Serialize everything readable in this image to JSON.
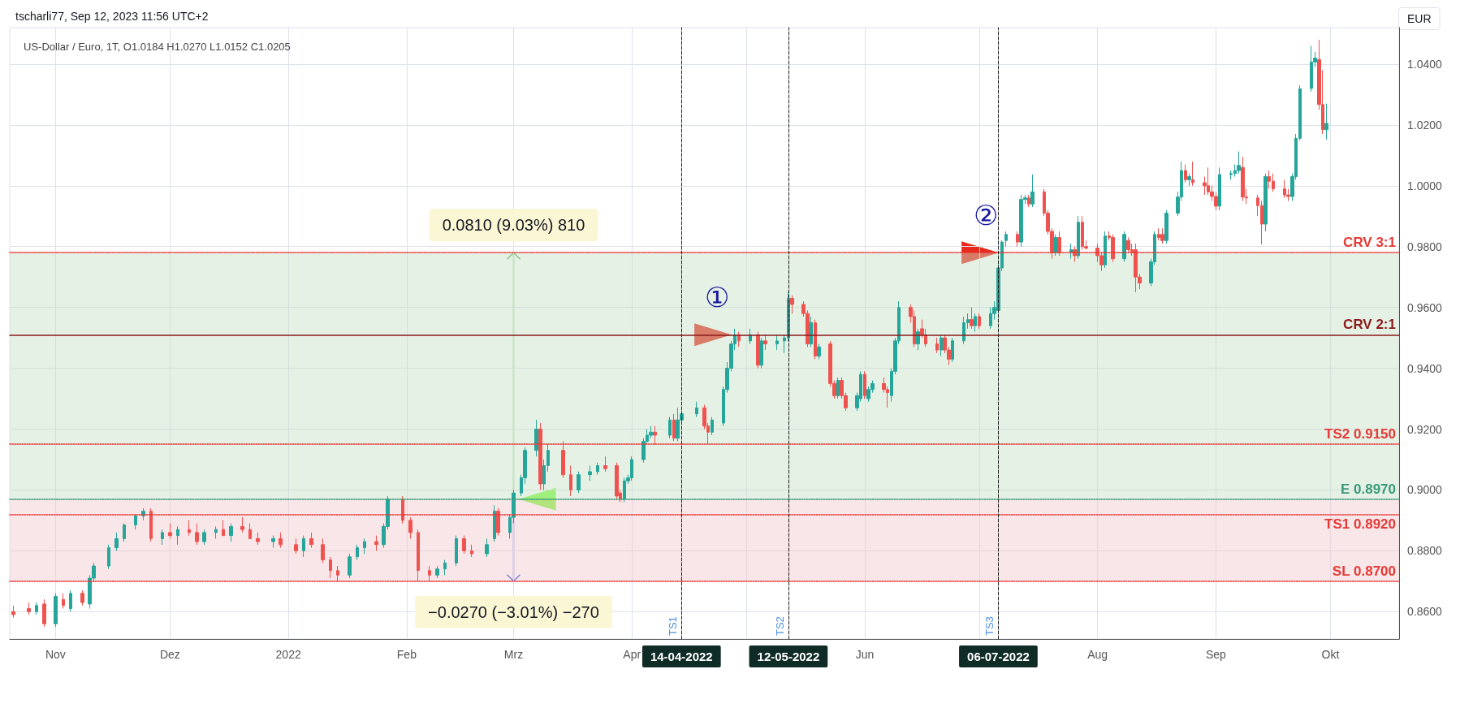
{
  "chart_data": {
    "type": "candlestick",
    "subtitle": "tscharli77, Sep 12, 2023 11:56 UTC+2",
    "title": "US-Dollar / Euro, 1T, O1.0184 H1.0270 L1.0152 C1.0205",
    "ylabel": "EUR",
    "x": [
      "2021-10-21",
      "2021-10-25",
      "2021-10-27",
      "2021-10-29",
      "2021-11-01",
      "2021-11-03",
      "2021-11-05",
      "2021-11-08",
      "2021-11-10",
      "2021-11-11",
      "2021-11-15",
      "2021-11-17",
      "2021-11-19",
      "2021-11-22",
      "2021-11-24",
      "2021-11-26",
      "2021-11-29",
      "2021-12-01",
      "2021-12-03",
      "2021-12-06",
      "2021-12-08",
      "2021-12-10",
      "2021-12-13",
      "2021-12-15",
      "2021-12-17",
      "2021-12-20",
      "2021-12-22",
      "2021-12-24",
      "2021-12-28",
      "2021-12-30",
      "2022-01-03",
      "2022-01-05",
      "2022-01-07",
      "2022-01-10",
      "2022-01-12",
      "2022-01-14",
      "2022-01-17",
      "2022-01-19",
      "2022-01-21",
      "2022-01-24",
      "2022-01-26",
      "2022-01-27",
      "2022-01-31",
      "2022-02-02",
      "2022-02-04",
      "2022-02-07",
      "2022-02-09",
      "2022-02-11",
      "2022-02-14",
      "2022-02-16",
      "2022-02-18",
      "2022-02-22",
      "2022-02-24",
      "2022-02-25",
      "2022-02-28",
      "2022-03-01",
      "2022-03-03",
      "2022-03-04",
      "2022-03-07",
      "2022-03-08",
      "2022-03-09",
      "2022-03-10",
      "2022-03-14",
      "2022-03-16",
      "2022-03-18",
      "2022-03-21",
      "2022-03-23",
      "2022-03-25",
      "2022-03-28",
      "2022-03-29",
      "2022-03-30",
      "2022-03-31",
      "2022-04-01",
      "2022-04-04",
      "2022-04-05",
      "2022-04-06",
      "2022-04-07",
      "2022-04-11",
      "2022-04-12",
      "2022-04-13",
      "2022-04-14",
      "2022-04-18",
      "2022-04-20",
      "2022-04-21",
      "2022-04-22",
      "2022-04-25",
      "2022-04-26",
      "2022-04-27",
      "2022-04-28",
      "2022-04-29",
      "2022-05-02",
      "2022-05-04",
      "2022-05-05",
      "2022-05-06",
      "2022-05-09",
      "2022-05-11",
      "2022-05-12",
      "2022-05-13",
      "2022-05-16",
      "2022-05-17",
      "2022-05-18",
      "2022-05-19",
      "2022-05-20",
      "2022-05-23",
      "2022-05-24",
      "2022-05-25",
      "2022-05-26",
      "2022-05-27",
      "2022-05-30",
      "2022-05-31",
      "2022-06-01",
      "2022-06-02",
      "2022-06-03",
      "2022-06-06",
      "2022-06-07",
      "2022-06-08",
      "2022-06-09",
      "2022-06-10",
      "2022-06-13",
      "2022-06-14",
      "2022-06-15",
      "2022-06-16",
      "2022-06-17",
      "2022-06-20",
      "2022-06-21",
      "2022-06-22",
      "2022-06-23",
      "2022-06-24",
      "2022-06-27",
      "2022-06-28",
      "2022-06-29",
      "2022-06-30",
      "2022-07-01",
      "2022-07-04",
      "2022-07-05",
      "2022-07-06",
      "2022-07-07",
      "2022-07-08",
      "2022-07-11",
      "2022-07-12",
      "2022-07-13",
      "2022-07-14",
      "2022-07-15",
      "2022-07-18",
      "2022-07-19",
      "2022-07-20",
      "2022-07-21",
      "2022-07-22",
      "2022-07-25",
      "2022-07-26",
      "2022-07-27",
      "2022-07-28",
      "2022-07-29",
      "2022-08-01",
      "2022-08-02",
      "2022-08-03",
      "2022-08-04",
      "2022-08-05",
      "2022-08-08",
      "2022-08-09",
      "2022-08-10",
      "2022-08-11",
      "2022-08-12",
      "2022-08-15",
      "2022-08-16",
      "2022-08-17",
      "2022-08-18",
      "2022-08-19",
      "2022-08-22",
      "2022-08-23",
      "2022-08-24",
      "2022-08-25",
      "2022-08-26",
      "2022-08-29",
      "2022-08-30",
      "2022-08-31",
      "2022-09-01",
      "2022-09-02",
      "2022-09-05",
      "2022-09-06",
      "2022-09-07",
      "2022-09-08",
      "2022-09-09",
      "2022-09-12",
      "2022-09-13",
      "2022-09-14",
      "2022-09-15",
      "2022-09-16",
      "2022-09-19",
      "2022-09-20",
      "2022-09-21",
      "2022-09-22",
      "2022-09-23",
      "2022-09-26",
      "2022-09-27",
      "2022-09-28",
      "2022-09-29",
      "2022-09-30"
    ],
    "ohlc": [
      [
        0.86,
        0.862,
        0.858,
        0.859
      ],
      [
        0.861,
        0.863,
        0.859,
        0.86
      ],
      [
        0.86,
        0.863,
        0.859,
        0.862
      ],
      [
        0.8625,
        0.864,
        0.855,
        0.856
      ],
      [
        0.856,
        0.866,
        0.855,
        0.865
      ],
      [
        0.864,
        0.866,
        0.861,
        0.862
      ],
      [
        0.861,
        0.867,
        0.86,
        0.866
      ],
      [
        0.866,
        0.867,
        0.862,
        0.863
      ],
      [
        0.8625,
        0.872,
        0.861,
        0.871
      ],
      [
        0.871,
        0.876,
        0.87,
        0.875
      ],
      [
        0.875,
        0.882,
        0.874,
        0.881
      ],
      [
        0.881,
        0.886,
        0.88,
        0.884
      ],
      [
        0.884,
        0.889,
        0.883,
        0.8885
      ],
      [
        0.8885,
        0.892,
        0.887,
        0.8915
      ],
      [
        0.8915,
        0.894,
        0.89,
        0.893
      ],
      [
        0.893,
        0.894,
        0.883,
        0.884
      ],
      [
        0.884,
        0.887,
        0.882,
        0.886
      ],
      [
        0.886,
        0.889,
        0.884,
        0.885
      ],
      [
        0.885,
        0.888,
        0.882,
        0.887
      ],
      [
        0.887,
        0.89,
        0.885,
        0.886
      ],
      [
        0.886,
        0.889,
        0.882,
        0.883
      ],
      [
        0.883,
        0.887,
        0.882,
        0.886
      ],
      [
        0.886,
        0.888,
        0.884,
        0.887
      ],
      [
        0.887,
        0.89,
        0.885,
        0.885
      ],
      [
        0.885,
        0.889,
        0.883,
        0.888
      ],
      [
        0.888,
        0.891,
        0.886,
        0.887
      ],
      [
        0.887,
        0.889,
        0.884,
        0.884
      ],
      [
        0.884,
        0.886,
        0.882,
        0.883
      ],
      [
        0.883,
        0.885,
        0.881,
        0.884
      ],
      [
        0.884,
        0.886,
        0.881,
        0.882
      ],
      [
        0.882,
        0.884,
        0.879,
        0.88
      ],
      [
        0.88,
        0.885,
        0.878,
        0.884
      ],
      [
        0.884,
        0.886,
        0.881,
        0.882
      ],
      [
        0.882,
        0.884,
        0.876,
        0.877
      ],
      [
        0.877,
        0.878,
        0.871,
        0.8735
      ],
      [
        0.8735,
        0.875,
        0.87,
        0.872
      ],
      [
        0.872,
        0.879,
        0.871,
        0.878
      ],
      [
        0.878,
        0.882,
        0.877,
        0.881
      ],
      [
        0.881,
        0.884,
        0.879,
        0.883
      ],
      [
        0.883,
        0.885,
        0.88,
        0.882
      ],
      [
        0.882,
        0.889,
        0.881,
        0.888
      ],
      [
        0.888,
        0.898,
        0.887,
        0.897
      ],
      [
        0.897,
        0.898,
        0.889,
        0.89
      ],
      [
        0.89,
        0.891,
        0.884,
        0.886
      ],
      [
        0.886,
        0.887,
        0.87,
        0.8735
      ],
      [
        0.8735,
        0.875,
        0.87,
        0.872
      ],
      [
        0.872,
        0.875,
        0.871,
        0.874
      ],
      [
        0.874,
        0.877,
        0.872,
        0.876
      ],
      [
        0.876,
        0.885,
        0.875,
        0.884
      ],
      [
        0.884,
        0.885,
        0.879,
        0.88
      ],
      [
        0.88,
        0.882,
        0.878,
        0.879
      ],
      [
        0.879,
        0.884,
        0.878,
        0.882
      ],
      [
        0.884,
        0.895,
        0.883,
        0.893
      ],
      [
        0.893,
        0.894,
        0.885,
        0.886
      ],
      [
        0.886,
        0.892,
        0.884,
        0.891
      ],
      [
        0.891,
        0.9,
        0.889,
        0.899
      ],
      [
        0.899,
        0.905,
        0.898,
        0.904
      ],
      [
        0.904,
        0.914,
        0.902,
        0.913
      ],
      [
        0.913,
        0.923,
        0.911,
        0.92
      ],
      [
        0.92,
        0.922,
        0.9,
        0.902
      ],
      [
        0.902,
        0.91,
        0.9,
        0.908
      ],
      [
        0.908,
        0.915,
        0.906,
        0.913
      ],
      [
        0.913,
        0.916,
        0.904,
        0.905
      ],
      [
        0.905,
        0.908,
        0.898,
        0.9
      ],
      [
        0.9,
        0.906,
        0.899,
        0.905
      ],
      [
        0.905,
        0.908,
        0.903,
        0.906
      ],
      [
        0.906,
        0.909,
        0.905,
        0.908
      ],
      [
        0.908,
        0.911,
        0.906,
        0.907
      ],
      [
        0.908,
        0.909,
        0.897,
        0.898
      ],
      [
        0.899,
        0.9,
        0.896,
        0.897
      ],
      [
        0.897,
        0.904,
        0.896,
        0.903
      ],
      [
        0.903,
        0.905,
        0.902,
        0.904
      ],
      [
        0.904,
        0.911,
        0.903,
        0.91
      ],
      [
        0.91,
        0.917,
        0.909,
        0.916
      ],
      [
        0.916,
        0.92,
        0.915,
        0.918
      ],
      [
        0.918,
        0.921,
        0.917,
        0.919
      ],
      [
        0.919,
        0.921,
        0.915,
        0.918
      ],
      [
        0.918,
        0.924,
        0.917,
        0.923
      ],
      [
        0.923,
        0.925,
        0.916,
        0.917
      ],
      [
        0.917,
        0.927,
        0.916,
        0.923
      ],
      [
        0.923,
        0.926,
        0.922,
        0.925
      ],
      [
        0.925,
        0.929,
        0.924,
        0.927
      ],
      [
        0.927,
        0.928,
        0.92,
        0.921
      ],
      [
        0.921,
        0.922,
        0.915,
        0.919
      ],
      [
        0.919,
        0.924,
        0.918,
        0.923
      ],
      [
        0.922,
        0.934,
        0.921,
        0.933
      ],
      [
        0.933,
        0.942,
        0.932,
        0.94
      ],
      [
        0.94,
        0.949,
        0.939,
        0.948
      ],
      [
        0.948,
        0.953,
        0.946,
        0.951
      ],
      [
        0.951,
        0.952,
        0.947,
        0.949
      ],
      [
        0.949,
        0.953,
        0.948,
        0.951
      ],
      [
        0.951,
        0.952,
        0.94,
        0.941
      ],
      [
        0.941,
        0.95,
        0.94,
        0.949
      ],
      [
        0.949,
        0.951,
        0.946,
        0.948
      ],
      [
        0.948,
        0.951,
        0.946,
        0.949
      ],
      [
        0.949,
        0.951,
        0.945,
        0.95
      ],
      [
        0.95,
        0.965,
        0.949,
        0.963
      ],
      [
        0.963,
        0.964,
        0.958,
        0.961
      ],
      [
        0.961,
        0.962,
        0.957,
        0.958
      ],
      [
        0.958,
        0.959,
        0.947,
        0.948
      ],
      [
        0.948,
        0.957,
        0.947,
        0.955
      ],
      [
        0.955,
        0.956,
        0.943,
        0.944
      ],
      [
        0.944,
        0.948,
        0.943,
        0.947
      ],
      [
        0.948,
        0.949,
        0.934,
        0.935
      ],
      [
        0.935,
        0.936,
        0.93,
        0.931
      ],
      [
        0.931,
        0.937,
        0.93,
        0.936
      ],
      [
        0.936,
        0.937,
        0.93,
        0.931
      ],
      [
        0.931,
        0.932,
        0.926,
        0.927
      ],
      [
        0.927,
        0.932,
        0.926,
        0.931
      ],
      [
        0.93,
        0.939,
        0.929,
        0.938
      ],
      [
        0.938,
        0.939,
        0.93,
        0.931
      ],
      [
        0.93,
        0.934,
        0.929,
        0.933
      ],
      [
        0.933,
        0.936,
        0.932,
        0.935
      ],
      [
        0.935,
        0.937,
        0.932,
        0.933
      ],
      [
        0.933,
        0.934,
        0.927,
        0.932
      ],
      [
        0.931,
        0.94,
        0.929,
        0.939
      ],
      [
        0.939,
        0.95,
        0.938,
        0.949
      ],
      [
        0.949,
        0.962,
        0.948,
        0.96
      ],
      [
        0.96,
        0.961,
        0.955,
        0.957
      ],
      [
        0.957,
        0.959,
        0.947,
        0.948
      ],
      [
        0.948,
        0.953,
        0.946,
        0.952
      ],
      [
        0.953,
        0.956,
        0.95,
        0.951
      ],
      [
        0.951,
        0.953,
        0.947,
        0.948
      ],
      [
        0.948,
        0.95,
        0.945,
        0.946
      ],
      [
        0.946,
        0.951,
        0.944,
        0.95
      ],
      [
        0.95,
        0.951,
        0.945,
        0.946
      ],
      [
        0.946,
        0.947,
        0.941,
        0.943
      ],
      [
        0.943,
        0.95,
        0.942,
        0.949
      ],
      [
        0.949,
        0.957,
        0.948,
        0.955
      ],
      [
        0.955,
        0.958,
        0.953,
        0.956
      ],
      [
        0.956,
        0.96,
        0.953,
        0.954
      ],
      [
        0.954,
        0.958,
        0.952,
        0.957
      ],
      [
        0.957,
        0.958,
        0.953,
        0.954
      ],
      [
        0.954,
        0.96,
        0.953,
        0.958
      ],
      [
        0.958,
        0.962,
        0.956,
        0.96
      ],
      [
        0.959,
        0.974,
        0.958,
        0.973
      ],
      [
        0.973,
        0.982,
        0.972,
        0.9815
      ],
      [
        0.982,
        0.985,
        0.98,
        0.984
      ],
      [
        0.984,
        0.985,
        0.98,
        0.9815
      ],
      [
        0.9815,
        0.997,
        0.98,
        0.9955
      ],
      [
        0.9955,
        0.997,
        0.994,
        0.996
      ],
      [
        0.996,
        0.997,
        0.993,
        0.994
      ],
      [
        0.994,
        1.0037,
        0.993,
        0.998
      ],
      [
        0.998,
        0.999,
        0.99,
        0.991
      ],
      [
        0.991,
        0.992,
        0.984,
        0.985
      ],
      [
        0.985,
        0.986,
        0.976,
        0.978
      ],
      [
        0.978,
        0.984,
        0.977,
        0.983
      ],
      [
        0.983,
        0.985,
        0.977,
        0.978
      ],
      [
        0.978,
        0.981,
        0.976,
        0.979
      ],
      [
        0.979,
        0.98,
        0.975,
        0.977
      ],
      [
        0.977,
        0.99,
        0.976,
        0.988
      ],
      [
        0.988,
        0.99,
        0.979,
        0.98
      ],
      [
        0.98,
        0.982,
        0.979,
        0.9795
      ],
      [
        0.9795,
        0.981,
        0.975,
        0.977
      ],
      [
        0.977,
        0.978,
        0.972,
        0.974
      ],
      [
        0.974,
        0.985,
        0.973,
        0.9835
      ],
      [
        0.9835,
        0.985,
        0.982,
        0.983
      ],
      [
        0.983,
        0.984,
        0.975,
        0.976
      ],
      [
        0.976,
        0.985,
        0.975,
        0.984
      ],
      [
        0.982,
        0.983,
        0.978,
        0.979
      ],
      [
        0.979,
        0.981,
        0.977,
        0.978
      ],
      [
        0.979,
        0.981,
        0.965,
        0.97
      ],
      [
        0.97,
        0.971,
        0.966,
        0.968
      ],
      [
        0.968,
        0.976,
        0.967,
        0.975
      ],
      [
        0.975,
        0.985,
        0.974,
        0.984
      ],
      [
        0.984,
        0.986,
        0.982,
        0.983
      ],
      [
        0.984,
        0.986,
        0.981,
        0.982
      ],
      [
        0.982,
        0.992,
        0.981,
        0.991
      ],
      [
        0.991,
        0.998,
        0.99,
        0.9963
      ],
      [
        0.9963,
        1.008,
        0.995,
        1.005
      ],
      [
        1.005,
        1.007,
        1.001,
        1.002
      ],
      [
        1.002,
        1.004,
        1.0,
        1.003
      ],
      [
        1.002,
        1.008,
        1.0,
        1.001
      ],
      [
        1.001,
        1.003,
        0.997,
        1.0
      ],
      [
        1.0,
        1.006,
        0.997,
        0.998
      ],
      [
        0.998,
        1.0,
        0.995,
        0.9965
      ],
      [
        0.9965,
        0.998,
        0.992,
        0.9933
      ],
      [
        0.9933,
        1.006,
        0.992,
        1.0037
      ],
      [
        1.0037,
        1.005,
        1.002,
        1.004
      ],
      [
        1.004,
        1.007,
        1.003,
        1.005
      ],
      [
        1.005,
        1.0113,
        1.004,
        1.0067
      ],
      [
        1.006,
        1.0095,
        0.995,
        0.9963
      ],
      [
        0.9963,
        0.999,
        0.994,
        0.996
      ],
      [
        0.996,
        0.997,
        0.99,
        0.9935
      ],
      [
        0.9935,
        0.995,
        0.9807,
        0.9874
      ],
      [
        0.9874,
        1.004,
        0.985,
        1.003
      ],
      [
        1.003,
        1.005,
        0.999,
        1.0015
      ],
      [
        1.0015,
        1.004,
        0.998,
        0.999
      ],
      [
        0.999,
        1.002,
        0.996,
        0.997
      ],
      [
        0.997,
        0.999,
        0.995,
        0.9965
      ],
      [
        0.9965,
        1.004,
        0.995,
        1.003
      ],
      [
        1.003,
        1.017,
        1.002,
        1.0156
      ],
      [
        1.0156,
        1.033,
        1.015,
        1.0319
      ],
      [
        1.032,
        1.046,
        1.031,
        1.0407
      ],
      [
        1.0407,
        1.044,
        1.039,
        1.042
      ],
      [
        1.0415,
        1.048,
        1.025,
        1.0267
      ],
      [
        1.0267,
        1.038,
        1.017,
        1.0185
      ],
      [
        1.0184,
        1.027,
        1.0152,
        1.0205
      ]
    ],
    "xlim": [
      "2021-10-20",
      "2022-10-19"
    ],
    "xticks": [
      {
        "value": "2021-11-01",
        "label": "Nov"
      },
      {
        "value": "2021-12-01",
        "label": "Dez"
      },
      {
        "value": "2022-01-01",
        "label": "2022"
      },
      {
        "value": "2022-02-01",
        "label": "Feb"
      },
      {
        "value": "2022-03-01",
        "label": "Mrz"
      },
      {
        "value": "2022-04-01",
        "label": "Apr"
      },
      {
        "value": "2022-05-01",
        "label": null
      },
      {
        "value": "2022-06-01",
        "label": "Jun"
      },
      {
        "value": "2022-07-01",
        "label": null
      },
      {
        "value": "2022-08-01",
        "label": "Aug"
      },
      {
        "value": "2022-09-01",
        "label": "Sep"
      },
      {
        "value": "2022-10-01",
        "label": "Okt"
      }
    ],
    "ylim": [
      0.851,
      1.052
    ],
    "yticks": [
      {
        "value": 0.86,
        "label": "0.8600"
      },
      {
        "value": 0.88,
        "label": "0.8800"
      },
      {
        "value": 0.9,
        "label": "0.9000"
      },
      {
        "value": 0.92,
        "label": "0.9200"
      },
      {
        "value": 0.94,
        "label": "0.9400"
      },
      {
        "value": 0.96,
        "label": "0.9600"
      },
      {
        "value": 0.98,
        "label": "0.9800"
      },
      {
        "value": 1.0,
        "label": "1.0000"
      },
      {
        "value": 1.02,
        "label": "1.0200"
      },
      {
        "value": 1.04,
        "label": "1.0400"
      }
    ],
    "grid": true,
    "ref_lines": [
      {
        "axis": "y",
        "value": 0.978,
        "label": "CRV 3:1",
        "color": "#e53935",
        "line_style": "dotted"
      },
      {
        "axis": "y",
        "value": 0.951,
        "label": "CRV 2:1",
        "color": "#8b1a1a",
        "line_style": "solid"
      },
      {
        "axis": "y",
        "value": 0.897,
        "label": "E 0.8970",
        "color": "#3a9a7a",
        "line_style": "dotted"
      },
      {
        "axis": "y",
        "value": 0.892,
        "label": "TS1 0.8920",
        "color": "#e53935",
        "line_style": "dotted"
      },
      {
        "axis": "y",
        "value": 0.915,
        "label": "TS2 0.9150",
        "color": "#e53935",
        "line_style": "dotted"
      },
      {
        "axis": "y",
        "value": 0.87,
        "label": "SL 0.8700",
        "color": "#e53935",
        "line_style": "dotted"
      },
      {
        "axis": "x",
        "value": "2022-04-14",
        "label": "TS1",
        "color": "#222222",
        "line_style": "dashed"
      },
      {
        "axis": "x",
        "value": "2022-05-12",
        "label": "TS2",
        "color": "#222222",
        "line_style": "dashed"
      },
      {
        "axis": "x",
        "value": "2022-07-06",
        "label": "TS3",
        "color": "#222222",
        "line_style": "dashed"
      }
    ],
    "bands": [
      {
        "axis": "y",
        "from": 0.897,
        "to": 0.978,
        "color": "#c8e0c8"
      },
      {
        "axis": "y",
        "from": 0.87,
        "to": 0.897,
        "color": "#f2c8cc"
      }
    ],
    "annotations": [
      "①",
      "②",
      {
        "text": "0.0810 (9.03%) 810",
        "x": "2022-03-01",
        "y": 0.978
      },
      {
        "text": "−0.0270 (−3.01%) −270",
        "x": "2022-03-01",
        "y": 0.87
      },
      "14-04-2022",
      "12-05-2022",
      "06-07-2022"
    ]
  }
}
